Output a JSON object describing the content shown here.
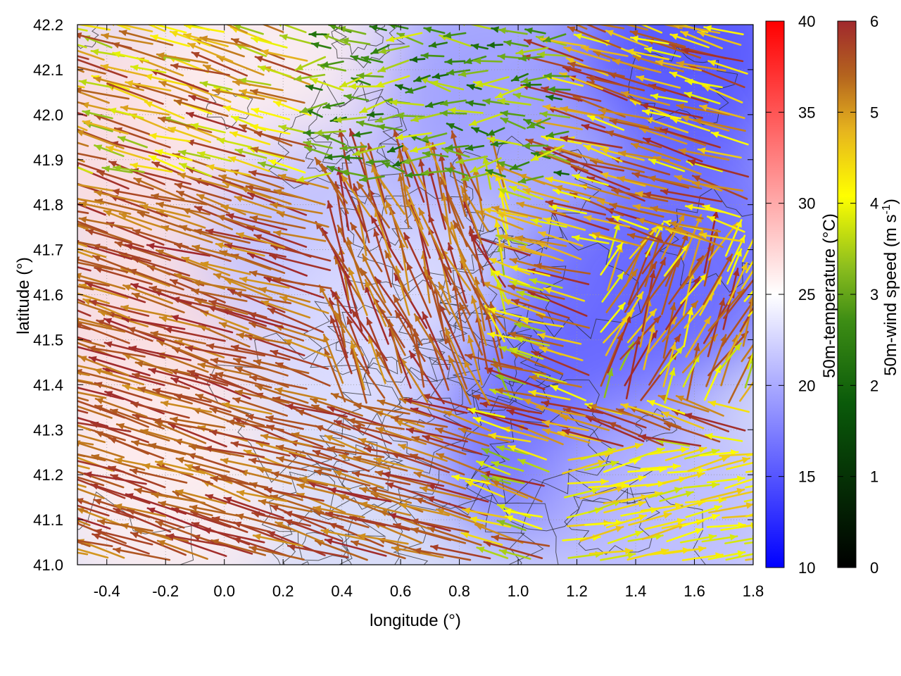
{
  "chart_data": {
    "type": "vector-field",
    "xlabel": "longitude (°)",
    "ylabel": "latitude (°)",
    "xlim": [
      -0.5,
      1.8
    ],
    "ylim": [
      41.0,
      42.2
    ],
    "xticks": [
      -0.4,
      -0.2,
      0.0,
      0.2,
      0.4,
      0.6,
      0.8,
      1.0,
      1.2,
      1.4,
      1.6,
      1.8
    ],
    "xtick_labels": [
      "-0.4",
      "-0.2",
      "0.0",
      "0.2",
      "0.4",
      "0.6",
      "0.8",
      "1.0",
      "1.2",
      "1.4",
      "1.6",
      "1.8"
    ],
    "yticks": [
      41.0,
      41.1,
      41.2,
      41.3,
      41.4,
      41.5,
      41.6,
      41.7,
      41.8,
      41.9,
      42.0,
      42.1,
      42.2
    ],
    "ytick_labels": [
      "41.0",
      "41.1",
      "41.2",
      "41.3",
      "41.4",
      "41.5",
      "41.6",
      "41.7",
      "41.8",
      "41.9",
      "42.0",
      "42.1",
      "42.2"
    ],
    "grid": true,
    "temperature_colorbar": {
      "label": "50m-temperature (°C)",
      "range": [
        10,
        40
      ],
      "ticks": [
        10,
        15,
        20,
        25,
        30,
        35,
        40
      ],
      "tick_labels": [
        "10",
        "15",
        "20",
        "25",
        "30",
        "35",
        "40"
      ],
      "colors": [
        "#0000ff",
        "#ffffff",
        "#ff0000"
      ]
    },
    "wind_colorbar": {
      "label": "50m-wind speed (m s-1)",
      "label_main": "50m-wind speed (m s",
      "label_sup": "-1",
      "label_end": ")",
      "range": [
        0,
        6
      ],
      "ticks": [
        0,
        1,
        2,
        3,
        4,
        5,
        6
      ],
      "tick_labels": [
        "0",
        "1",
        "2",
        "3",
        "4",
        "5",
        "6"
      ],
      "colors": [
        "#000000",
        "#0a5a0a",
        "#3c8c14",
        "#8cbe1e",
        "#ffff00",
        "#e6b41e",
        "#b4641e",
        "#a0282d"
      ]
    },
    "temperature_regions": [
      {
        "lon": -0.35,
        "lat": 41.95,
        "temp": 27
      },
      {
        "lon": -0.3,
        "lat": 41.45,
        "temp": 27
      },
      {
        "lon": -0.2,
        "lat": 41.15,
        "temp": 26
      },
      {
        "lon": 0.15,
        "lat": 42.1,
        "temp": 26
      },
      {
        "lon": 0.35,
        "lat": 41.7,
        "temp": 21
      },
      {
        "lon": 0.55,
        "lat": 41.5,
        "temp": 23
      },
      {
        "lon": 0.9,
        "lat": 42.05,
        "temp": 19
      },
      {
        "lon": 1.1,
        "lat": 41.3,
        "temp": 16
      },
      {
        "lon": 1.3,
        "lat": 41.55,
        "temp": 16
      },
      {
        "lon": 1.6,
        "lat": 42.15,
        "temp": 14
      },
      {
        "lon": 1.6,
        "lat": 41.7,
        "temp": 16
      },
      {
        "lon": 1.5,
        "lat": 41.1,
        "temp": 21
      }
    ]
  }
}
